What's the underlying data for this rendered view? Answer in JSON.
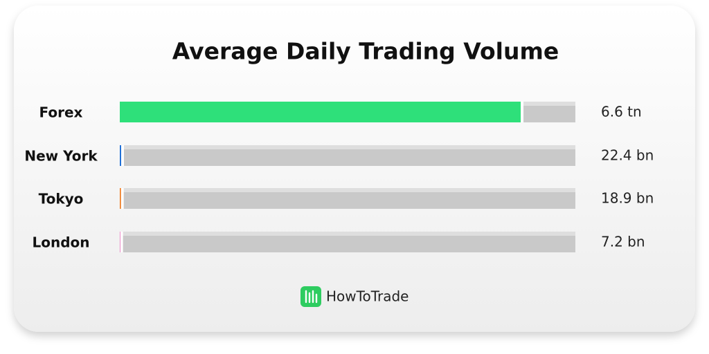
{
  "chart_data": {
    "type": "hbar",
    "title": "Average Daily Trading Volume",
    "categories": [
      "Forex",
      "New York",
      "Tokyo",
      "London"
    ],
    "values": [
      6600,
      22.4,
      18.9,
      7.2
    ],
    "value_labels": [
      "6.6 tn",
      "22.4 bn",
      "18.9 bn",
      "7.2 bn"
    ],
    "colors": [
      "#2ee07a",
      "#1f6fd6",
      "#f07a1e",
      "#e84fb0"
    ]
  },
  "footer": {
    "brand": "HowToTrade"
  }
}
